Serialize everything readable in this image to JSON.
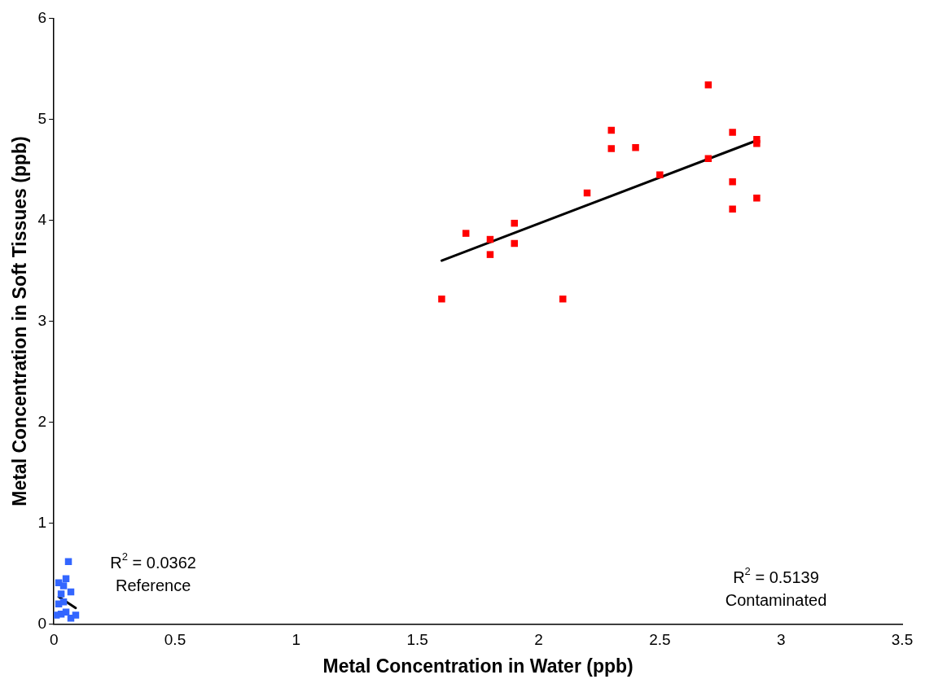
{
  "chart_data": {
    "type": "scatter",
    "xlabel": "Metal Concentration in Water (ppb)",
    "ylabel": "Metal Concentration in Soft Tissues (ppb)",
    "xlim": [
      0,
      3.5
    ],
    "xticks": [
      0,
      0.5,
      1,
      1.5,
      2,
      2.5,
      3,
      3.5
    ],
    "ylim": [
      0,
      6
    ],
    "yticks": [
      0,
      1,
      2,
      3,
      4,
      5,
      6
    ],
    "grid": false,
    "legend": false,
    "marker": "square",
    "series": [
      {
        "color": "#3366ff",
        "x": [
          0.06,
          0.02,
          0.05,
          0.04,
          0.03,
          0.07,
          0.02,
          0.04,
          0.03,
          0.05,
          0.07,
          0.09,
          0.01
        ],
        "values": [
          0.62,
          0.41,
          0.45,
          0.38,
          0.3,
          0.32,
          0.2,
          0.22,
          0.1,
          0.12,
          0.06,
          0.09,
          0.09
        ]
      },
      {
        "color": "#ff0000",
        "x": [
          1.6,
          1.7,
          1.8,
          1.8,
          1.9,
          1.9,
          2.1,
          2.2,
          2.3,
          2.3,
          2.4,
          2.5,
          2.7,
          2.7,
          2.8,
          2.8,
          2.8,
          2.9,
          2.9,
          2.9
        ],
        "values": [
          3.22,
          3.87,
          3.81,
          3.66,
          3.97,
          3.77,
          3.22,
          4.27,
          4.89,
          4.71,
          4.72,
          4.45,
          5.34,
          4.61,
          4.87,
          4.38,
          4.11,
          4.8,
          4.76,
          4.22
        ]
      },
      {
        "type": "line",
        "marker": "none",
        "color": "#000000",
        "x": [
          0.02,
          0.09
        ],
        "values": [
          0.27,
          0.16
        ]
      },
      {
        "type": "line",
        "marker": "none",
        "color": "#000000",
        "x": [
          1.6,
          2.9
        ],
        "values": [
          3.6,
          4.79
        ]
      }
    ],
    "annotations": [
      "R$^{2}$ = 0.0362",
      "Reference",
      "R$^{2}$ = 0.5139",
      "Contaminated"
    ]
  }
}
